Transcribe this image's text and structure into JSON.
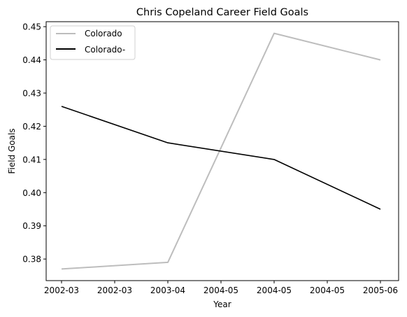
{
  "chart_data": {
    "type": "line",
    "title": "Chris Copeland Career Field Goals",
    "xlabel": "Year",
    "ylabel": "Field Goals",
    "x_ticks": [
      "2002-03",
      "2002-03",
      "2003-04",
      "2004-05",
      "2004-05",
      "2004-05",
      "2005-06"
    ],
    "ylim": [
      0.3735,
      0.4515
    ],
    "y_ticks": [
      "0.38",
      "0.39",
      "0.40",
      "0.41",
      "0.42",
      "0.43",
      "0.44",
      "0.45"
    ],
    "y_tick_values": [
      0.38,
      0.39,
      0.4,
      0.41,
      0.42,
      0.43,
      0.44,
      0.45
    ],
    "series": [
      {
        "name": "Colorado",
        "color": "#bdbdbd",
        "points": [
          [
            0,
            0.377
          ],
          [
            2,
            0.379
          ],
          [
            4,
            0.448
          ],
          [
            6,
            0.44
          ]
        ]
      },
      {
        "name": "Colorado-",
        "color": "#000000",
        "points": [
          [
            0,
            0.426
          ],
          [
            2,
            0.415
          ],
          [
            4,
            0.41
          ],
          [
            6,
            0.395
          ]
        ]
      }
    ],
    "legend_position": "top-left",
    "grid": false
  }
}
